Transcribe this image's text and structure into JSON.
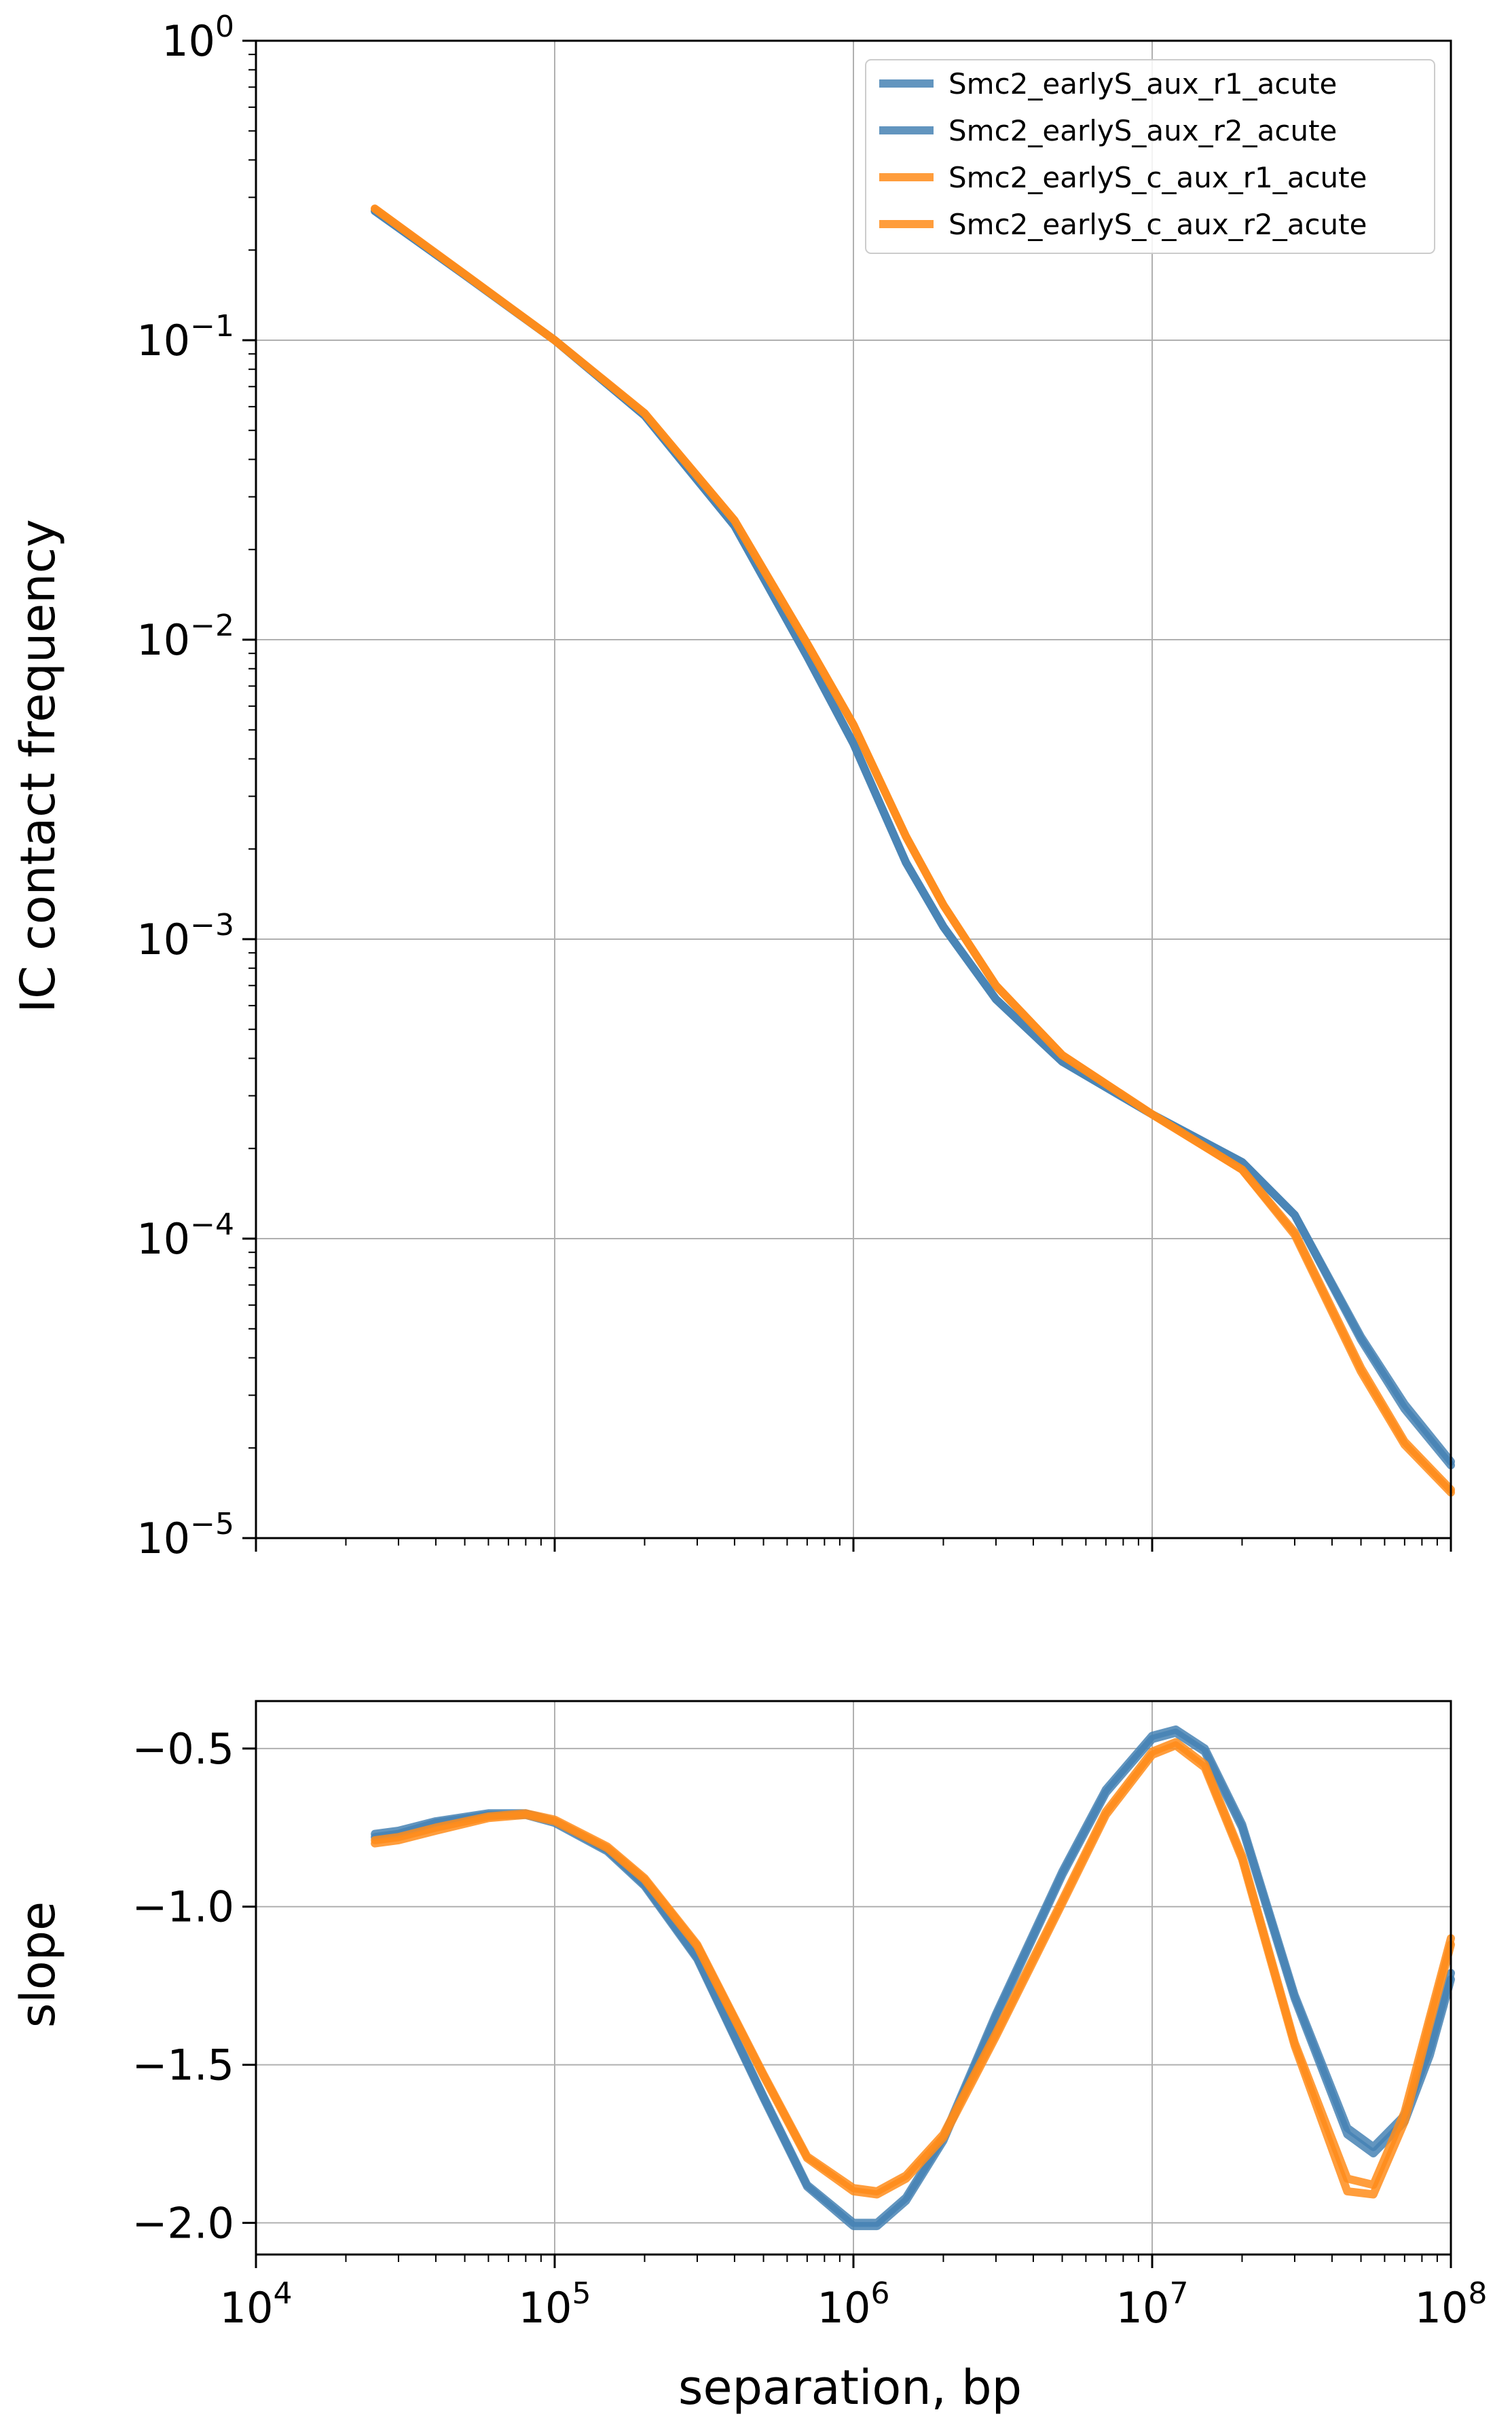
{
  "colors": {
    "blue": "#4682b4",
    "orange": "#ff8c1a"
  },
  "chart_data": [
    {
      "type": "line",
      "panel": "contact-frequency",
      "xscale": "log",
      "yscale": "log",
      "xlim": [
        10000,
        100000000
      ],
      "ylim": [
        1e-05,
        1
      ],
      "grid": true,
      "xlabel": "",
      "ylabel": "IC contact frequency",
      "x_ticks": [
        {
          "base": "10",
          "exp": "4",
          "value": 10000
        },
        {
          "base": "10",
          "exp": "5",
          "value": 100000
        },
        {
          "base": "10",
          "exp": "6",
          "value": 1000000
        },
        {
          "base": "10",
          "exp": "7",
          "value": 10000000
        },
        {
          "base": "10",
          "exp": "8",
          "value": 100000000
        }
      ],
      "y_ticks": [
        {
          "base": "10",
          "exp": "0",
          "value": 1
        },
        {
          "base": "10",
          "exp": "−1",
          "value": 0.1
        },
        {
          "base": "10",
          "exp": "−2",
          "value": 0.01
        },
        {
          "base": "10",
          "exp": "−3",
          "value": 0.001
        },
        {
          "base": "10",
          "exp": "−4",
          "value": 0.0001
        },
        {
          "base": "10",
          "exp": "−5",
          "value": 1e-05
        }
      ],
      "legend_position": "top-right",
      "series": [
        {
          "name": "Smc2_earlyS_aux_r1_acute",
          "color": "#4682b4",
          "x": [
            25000,
            50000,
            100000,
            200000,
            400000,
            700000,
            1000000,
            1500000,
            2000000,
            3000000,
            5000000,
            10000000,
            20000000,
            30000000,
            50000000,
            70000000,
            100000000
          ],
          "y": [
            0.27,
            0.165,
            0.1,
            0.056,
            0.024,
            0.0088,
            0.0045,
            0.0018,
            0.0011,
            0.00063,
            0.00039,
            0.00026,
            0.00018,
            0.00012,
            4.7e-05,
            2.8e-05,
            1.8e-05
          ]
        },
        {
          "name": "Smc2_earlyS_aux_r2_acute",
          "color": "#4682b4",
          "x": [
            25000,
            50000,
            100000,
            200000,
            400000,
            700000,
            1000000,
            1500000,
            2000000,
            3000000,
            5000000,
            10000000,
            20000000,
            30000000,
            50000000,
            70000000,
            100000000
          ],
          "y": [
            0.27,
            0.165,
            0.1,
            0.056,
            0.024,
            0.0088,
            0.0045,
            0.0018,
            0.0011,
            0.00063,
            0.00039,
            0.00026,
            0.00018,
            0.00012,
            4.6e-05,
            2.7e-05,
            1.75e-05
          ]
        },
        {
          "name": "Smc2_earlyS_c_aux_r1_acute",
          "color": "#ff8c1a",
          "x": [
            25000,
            50000,
            100000,
            200000,
            400000,
            700000,
            1000000,
            1500000,
            2000000,
            3000000,
            5000000,
            10000000,
            20000000,
            30000000,
            50000000,
            70000000,
            100000000
          ],
          "y": [
            0.275,
            0.166,
            0.1,
            0.057,
            0.025,
            0.0097,
            0.0052,
            0.0022,
            0.0013,
            0.0007,
            0.00041,
            0.00026,
            0.00017,
            0.000105,
            3.7e-05,
            2.1e-05,
            1.45e-05
          ]
        },
        {
          "name": "Smc2_earlyS_c_aux_r2_acute",
          "color": "#ff8c1a",
          "x": [
            25000,
            50000,
            100000,
            200000,
            400000,
            700000,
            1000000,
            1500000,
            2000000,
            3000000,
            5000000,
            10000000,
            20000000,
            30000000,
            50000000,
            70000000,
            100000000
          ],
          "y": [
            0.275,
            0.166,
            0.1,
            0.057,
            0.025,
            0.0097,
            0.0052,
            0.0022,
            0.0013,
            0.0007,
            0.00041,
            0.00026,
            0.00017,
            0.000103,
            3.6e-05,
            2.05e-05,
            1.42e-05
          ]
        }
      ]
    },
    {
      "type": "line",
      "panel": "slope",
      "xscale": "log",
      "yscale": "linear",
      "xlim": [
        10000,
        100000000
      ],
      "ylim": [
        -2.1,
        -0.35
      ],
      "grid": true,
      "xlabel": "separation, bp",
      "ylabel": "slope",
      "y_ticks": [
        "−0.5",
        "−1.0",
        "−1.5",
        "−2.0"
      ],
      "y_tick_values": [
        -0.5,
        -1.0,
        -1.5,
        -2.0
      ],
      "series": [
        {
          "name": "Smc2_earlyS_aux_r1_acute",
          "color": "#4682b4",
          "x": [
            25000,
            30000,
            40000,
            60000,
            80000,
            100000,
            150000,
            200000,
            300000,
            500000,
            700000,
            1000000,
            1200000,
            1500000,
            2000000,
            3000000,
            5000000,
            7000000,
            10000000,
            12000000,
            15000000,
            20000000,
            30000000,
            45000000,
            55000000,
            70000000,
            85000000,
            100000000
          ],
          "y": [
            -0.77,
            -0.76,
            -0.73,
            -0.705,
            -0.705,
            -0.73,
            -0.82,
            -0.93,
            -1.16,
            -1.6,
            -1.88,
            -2.0,
            -2.0,
            -1.92,
            -1.73,
            -1.34,
            -0.89,
            -0.63,
            -0.46,
            -0.44,
            -0.5,
            -0.74,
            -1.28,
            -1.7,
            -1.76,
            -1.66,
            -1.45,
            -1.21
          ]
        },
        {
          "name": "Smc2_earlyS_aux_r2_acute",
          "color": "#4682b4",
          "x": [
            25000,
            30000,
            40000,
            60000,
            80000,
            100000,
            150000,
            200000,
            300000,
            500000,
            700000,
            1000000,
            1200000,
            1500000,
            2000000,
            3000000,
            5000000,
            7000000,
            10000000,
            12000000,
            15000000,
            20000000,
            30000000,
            45000000,
            55000000,
            70000000,
            85000000,
            100000000
          ],
          "y": [
            -0.78,
            -0.77,
            -0.735,
            -0.71,
            -0.71,
            -0.735,
            -0.825,
            -0.935,
            -1.165,
            -1.605,
            -1.885,
            -2.01,
            -2.01,
            -1.93,
            -1.74,
            -1.35,
            -0.9,
            -0.64,
            -0.47,
            -0.45,
            -0.51,
            -0.75,
            -1.29,
            -1.72,
            -1.78,
            -1.68,
            -1.47,
            -1.23
          ]
        },
        {
          "name": "Smc2_earlyS_c_aux_r1_acute",
          "color": "#ff8c1a",
          "x": [
            25000,
            30000,
            40000,
            60000,
            80000,
            100000,
            150000,
            200000,
            300000,
            500000,
            700000,
            1000000,
            1200000,
            1500000,
            2000000,
            3000000,
            5000000,
            7000000,
            10000000,
            12000000,
            15000000,
            20000000,
            30000000,
            45000000,
            55000000,
            70000000,
            85000000,
            100000000
          ],
          "y": [
            -0.79,
            -0.78,
            -0.75,
            -0.715,
            -0.705,
            -0.725,
            -0.81,
            -0.91,
            -1.12,
            -1.53,
            -1.79,
            -1.89,
            -1.9,
            -1.85,
            -1.72,
            -1.4,
            -0.98,
            -0.7,
            -0.51,
            -0.48,
            -0.55,
            -0.84,
            -1.43,
            -1.86,
            -1.88,
            -1.65,
            -1.35,
            -1.1
          ]
        },
        {
          "name": "Smc2_earlyS_c_aux_r2_acute",
          "color": "#ff8c1a",
          "x": [
            25000,
            30000,
            40000,
            60000,
            80000,
            100000,
            150000,
            200000,
            300000,
            500000,
            700000,
            1000000,
            1200000,
            1500000,
            2000000,
            3000000,
            5000000,
            7000000,
            10000000,
            12000000,
            15000000,
            20000000,
            30000000,
            45000000,
            55000000,
            70000000,
            85000000,
            100000000
          ],
          "y": [
            -0.8,
            -0.79,
            -0.76,
            -0.72,
            -0.71,
            -0.73,
            -0.815,
            -0.915,
            -1.125,
            -1.535,
            -1.795,
            -1.9,
            -1.91,
            -1.86,
            -1.73,
            -1.41,
            -0.99,
            -0.71,
            -0.52,
            -0.49,
            -0.56,
            -0.85,
            -1.44,
            -1.9,
            -1.91,
            -1.68,
            -1.37,
            -1.12
          ]
        }
      ]
    }
  ]
}
